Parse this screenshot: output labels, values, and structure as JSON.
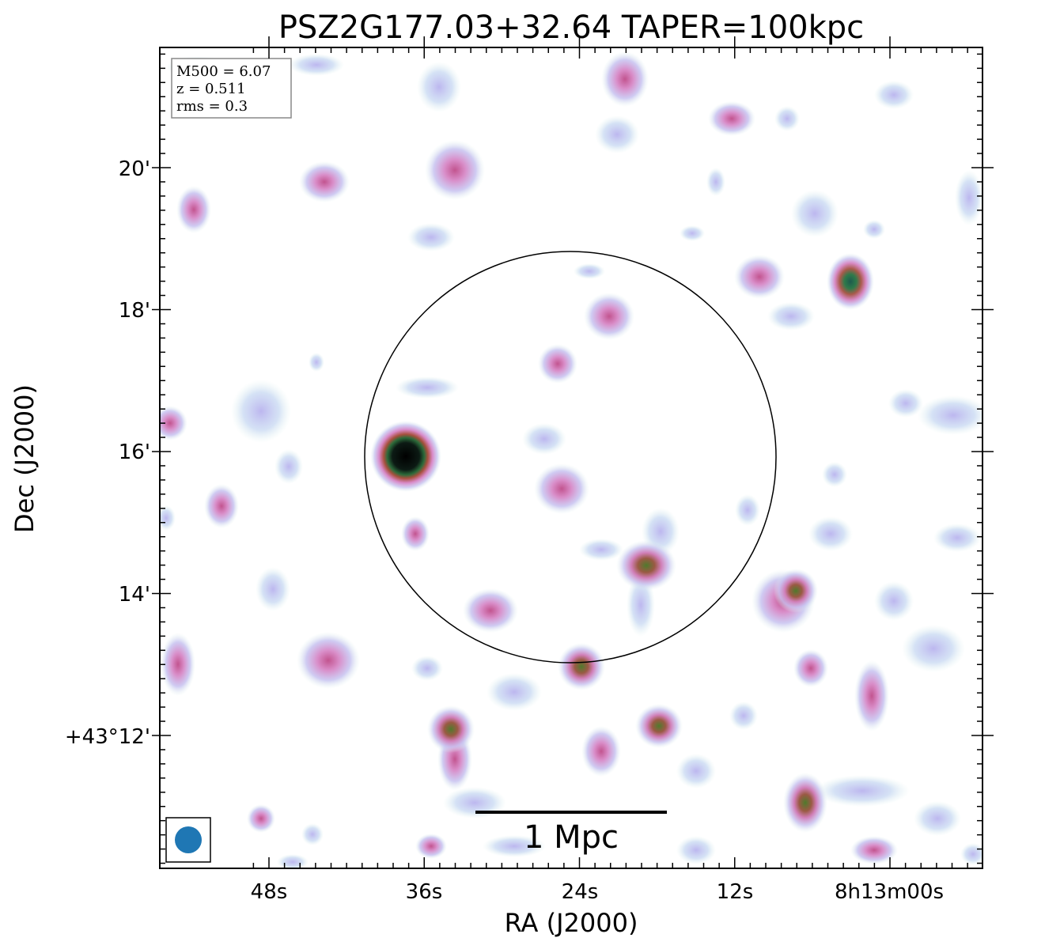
{
  "title": "PSZ2G177.03+32.64 TAPER=100kpc",
  "xlabel": "RA (J2000)",
  "ylabel": "Dec (J2000)",
  "x_ticks": [
    "48s",
    "36s",
    "24s",
    "12s",
    "8h13m00s"
  ],
  "y_ticks": [
    "20'",
    "18'",
    "16'",
    "14'",
    "+43°12'"
  ],
  "info": {
    "line1": "M500 = 6.07",
    "line2": "z = 0.511",
    "line3": "rms = 0.3"
  },
  "scalebar_label": "1 Mpc",
  "colors": {
    "beam": "#1f77b4",
    "frame": "#000000"
  },
  "sources": [
    {
      "id": "compact-core-west",
      "level": 1.0
    },
    {
      "id": "bright-northeast",
      "level": 0.85
    },
    {
      "id": "central-1",
      "level": 0.55
    },
    {
      "id": "central-2",
      "level": 0.65
    },
    {
      "id": "south-1",
      "level": 0.6
    },
    {
      "id": "south-2",
      "level": 0.6
    },
    {
      "id": "south-3",
      "level": 0.6
    },
    {
      "id": "south-east",
      "level": 0.65
    }
  ]
}
